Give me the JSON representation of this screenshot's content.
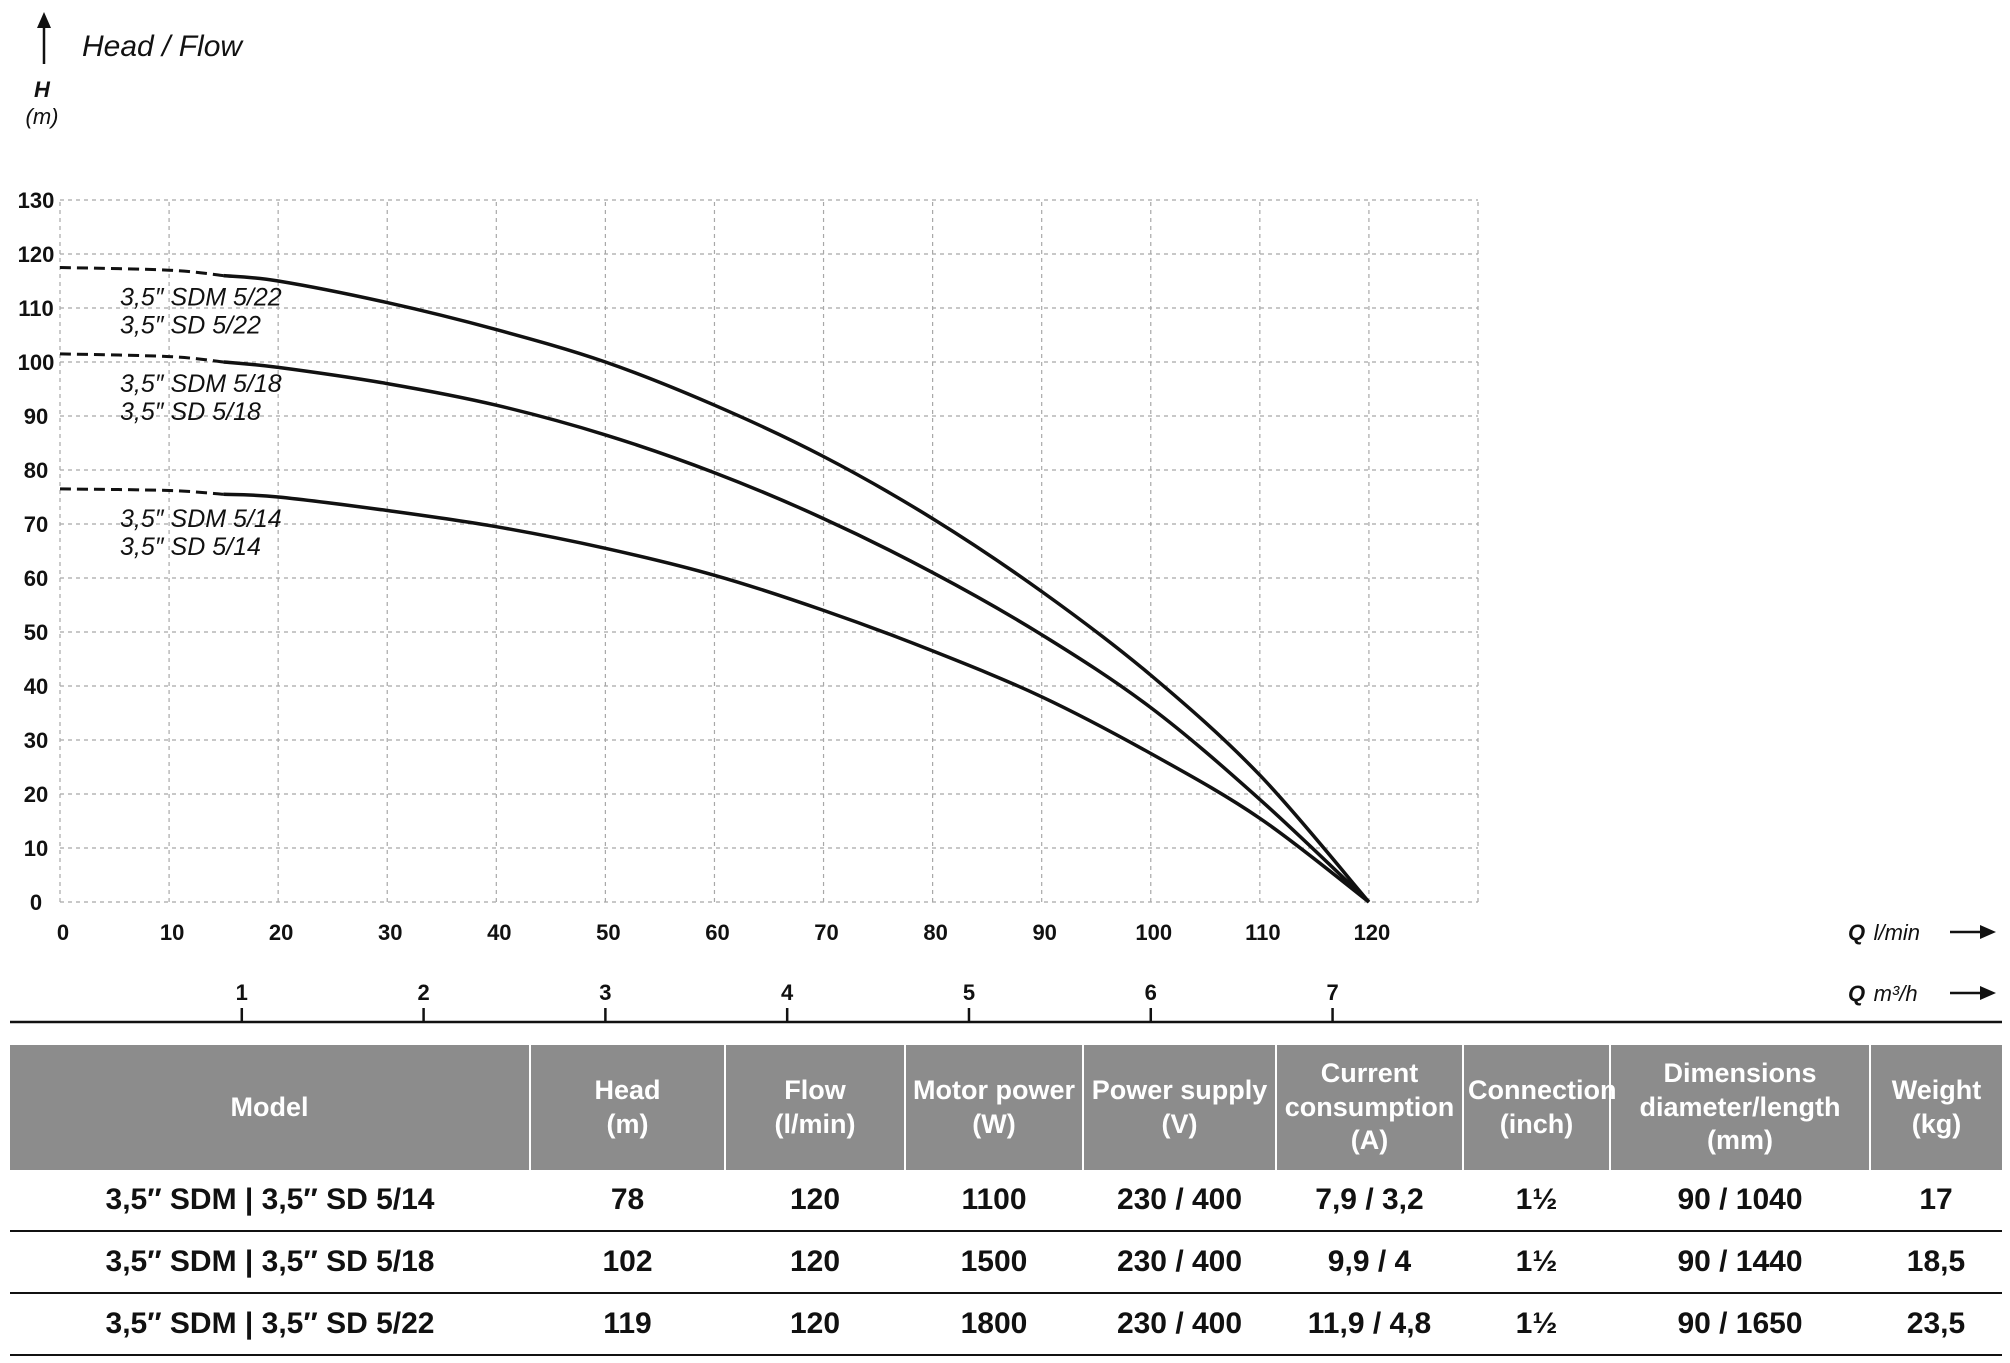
{
  "chart_data": {
    "type": "line",
    "title": "Head / Flow",
    "ylabel": "H",
    "yunit": "(m)",
    "xlabel": "Q",
    "xunit": "l/min",
    "x2label": "Q",
    "x2unit": "m³/h",
    "xlim": [
      0,
      130
    ],
    "ylim": [
      0,
      130
    ],
    "x_ticks": [
      0,
      10,
      20,
      30,
      40,
      50,
      60,
      70,
      80,
      90,
      100,
      110,
      120
    ],
    "y_ticks": [
      0,
      10,
      20,
      30,
      40,
      50,
      60,
      70,
      80,
      90,
      100,
      110,
      120,
      130
    ],
    "x2_ticks": [
      1,
      2,
      3,
      4,
      5,
      6,
      7
    ],
    "grid": true,
    "series": [
      {
        "name": "3,5\" SDM 5/22",
        "label_lines": [
          "3,5″ SDM 5/22",
          "3,5″ SD 5/22"
        ],
        "dashed_x": [
          0,
          15
        ],
        "x": [
          0,
          10,
          15,
          20,
          30,
          40,
          50,
          60,
          70,
          80,
          90,
          100,
          110,
          120
        ],
        "y": [
          117.5,
          117,
          116,
          115,
          111,
          106,
          100,
          92,
          82.5,
          71,
          57.5,
          42,
          23.5,
          0
        ]
      },
      {
        "name": "3,5\" SDM 5/18",
        "label_lines": [
          "3,5″ SDM 5/18",
          "3,5″ SD 5/18"
        ],
        "dashed_x": [
          0,
          15
        ],
        "x": [
          0,
          10,
          15,
          20,
          30,
          40,
          50,
          60,
          70,
          80,
          90,
          100,
          110,
          120
        ],
        "y": [
          101.5,
          101,
          100,
          99,
          96,
          92,
          86.5,
          79.5,
          71,
          61,
          49.5,
          36,
          19,
          0
        ]
      },
      {
        "name": "3,5\" SDM 5/14",
        "label_lines": [
          "3,5″ SDM 5/14",
          "3,5″ SD 5/14"
        ],
        "dashed_x": [
          0,
          15
        ],
        "x": [
          0,
          10,
          15,
          20,
          30,
          40,
          50,
          60,
          70,
          80,
          90,
          100,
          110,
          120
        ],
        "y": [
          76.5,
          76.2,
          75.5,
          75,
          72.5,
          69.5,
          65.5,
          60.5,
          54,
          46.5,
          38,
          27.5,
          15.5,
          0
        ]
      }
    ]
  },
  "table": {
    "headers": [
      [
        "Model"
      ],
      [
        "Head",
        "(m)"
      ],
      [
        "Flow",
        "(l/min)"
      ],
      [
        "Motor power",
        "(W)"
      ],
      [
        "Power supply",
        "(V)"
      ],
      [
        "Current",
        "consumption",
        "(A)"
      ],
      [
        "Connection",
        "(inch)"
      ],
      [
        "Dimensions",
        "diameter/length",
        "(mm)"
      ],
      [
        "Weight",
        "(kg)"
      ]
    ],
    "rows": [
      [
        "3,5″ SDM | 3,5″ SD 5/14",
        "78",
        "120",
        "1100",
        "230 / 400",
        "7,9 / 3,2",
        "1½",
        "90 / 1040",
        "17"
      ],
      [
        "3,5″ SDM | 3,5″ SD 5/18",
        "102",
        "120",
        "1500",
        "230 / 400",
        "9,9 / 4",
        "1½",
        "90 / 1440",
        "18,5"
      ],
      [
        "3,5″ SDM | 3,5″ SD 5/22",
        "119",
        "120",
        "1800",
        "230 / 400",
        "11,9 / 4,8",
        "1½",
        "90 / 1650",
        "23,5"
      ]
    ]
  }
}
